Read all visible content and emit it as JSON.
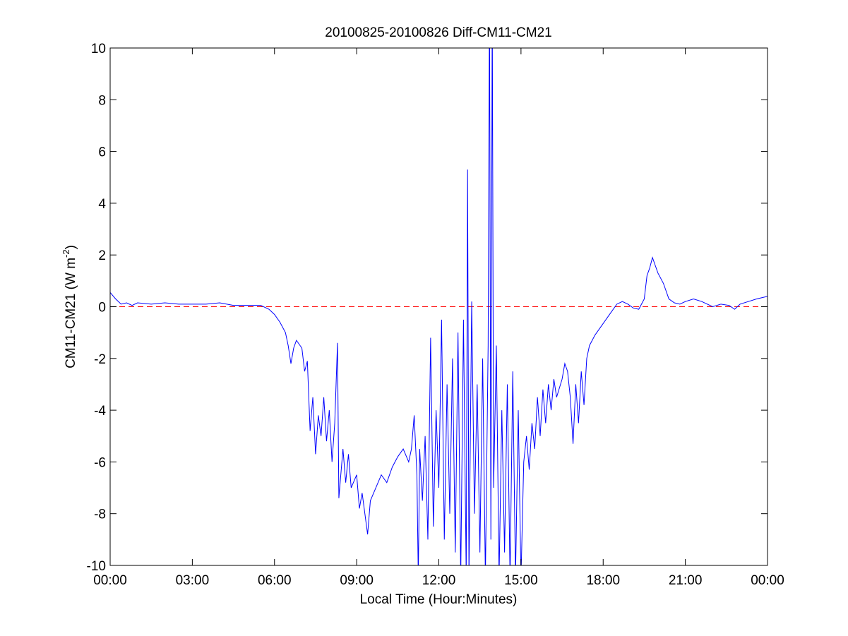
{
  "chart_data": {
    "type": "line",
    "title": "20100825-20100826 Diff-CM11-CM21",
    "xlabel": "Local Time (Hour:Minutes)",
    "ylabel": {
      "text": "CM11-CM21 (W m",
      "superscript": "-2",
      "suffix": ")"
    },
    "xlim": [
      0,
      24
    ],
    "xticks": [
      {
        "value": 0,
        "label": "00:00"
      },
      {
        "value": 3,
        "label": "03:00"
      },
      {
        "value": 6,
        "label": "06:00"
      },
      {
        "value": 9,
        "label": "09:00"
      },
      {
        "value": 12,
        "label": "12:00"
      },
      {
        "value": 15,
        "label": "15:00"
      },
      {
        "value": 18,
        "label": "18:00"
      },
      {
        "value": 21,
        "label": "21:00"
      },
      {
        "value": 24,
        "label": "00:00"
      }
    ],
    "ylim": [
      -10,
      10
    ],
    "yticks": [
      -10,
      -8,
      -6,
      -4,
      -2,
      0,
      2,
      4,
      6,
      8,
      10
    ],
    "reference_line": {
      "value": 0,
      "color": "#ff0000"
    },
    "series": [
      {
        "color": "#0000ff",
        "x": [
          0,
          0.2,
          0.4,
          0.6,
          0.8,
          1.0,
          1.5,
          2,
          2.5,
          3,
          3.5,
          4,
          4.5,
          5,
          5.5,
          5.8,
          6.0,
          6.2,
          6.4,
          6.5,
          6.6,
          6.7,
          6.8,
          7.0,
          7.1,
          7.2,
          7.3,
          7.4,
          7.5,
          7.6,
          7.7,
          7.8,
          7.9,
          8.0,
          8.1,
          8.2,
          8.3,
          8.35,
          8.5,
          8.6,
          8.7,
          8.8,
          9.0,
          9.1,
          9.2,
          9.3,
          9.4,
          9.5,
          9.7,
          9.9,
          10.1,
          10.3,
          10.5,
          10.7,
          10.9,
          11.0,
          11.1,
          11.2,
          11.25,
          11.3,
          11.4,
          11.5,
          11.6,
          11.7,
          11.8,
          11.9,
          12.0,
          12.1,
          12.2,
          12.3,
          12.4,
          12.5,
          12.6,
          12.7,
          12.8,
          12.9,
          13.0,
          13.05,
          13.1,
          13.2,
          13.3,
          13.4,
          13.5,
          13.6,
          13.7,
          13.8,
          13.85,
          13.9,
          13.95,
          14.0,
          14.1,
          14.2,
          14.3,
          14.4,
          14.5,
          14.6,
          14.7,
          14.8,
          14.9,
          15.0,
          15.1,
          15.2,
          15.3,
          15.4,
          15.5,
          15.6,
          15.7,
          15.8,
          15.9,
          16.0,
          16.1,
          16.2,
          16.3,
          16.5,
          16.6,
          16.7,
          16.8,
          16.9,
          17.0,
          17.1,
          17.2,
          17.3,
          17.4,
          17.5,
          17.7,
          17.9,
          18.1,
          18.3,
          18.5,
          18.7,
          18.9,
          19.1,
          19.3,
          19.5,
          19.6,
          19.7,
          19.8,
          19.9,
          20.0,
          20.2,
          20.4,
          20.6,
          20.8,
          21,
          21.3,
          21.6,
          22,
          22.3,
          22.6,
          22.8,
          23,
          23.3,
          23.6,
          24
        ],
        "values": [
          0.55,
          0.3,
          0.1,
          0.15,
          0.05,
          0.15,
          0.1,
          0.15,
          0.1,
          0.1,
          0.1,
          0.15,
          0.05,
          0.05,
          0.05,
          -0.1,
          -0.3,
          -0.6,
          -1.0,
          -1.5,
          -2.2,
          -1.6,
          -1.3,
          -1.6,
          -2.5,
          -2.1,
          -4.8,
          -3.5,
          -5.7,
          -4.2,
          -5.0,
          -3.5,
          -5.2,
          -4.0,
          -6.0,
          -4.5,
          -1.4,
          -7.4,
          -5.5,
          -6.8,
          -5.7,
          -7.0,
          -6.5,
          -7.8,
          -7.2,
          -8.0,
          -8.8,
          -7.5,
          -7.0,
          -6.5,
          -6.8,
          -6.2,
          -5.8,
          -5.5,
          -6.0,
          -5.5,
          -4.2,
          -6.5,
          -10.5,
          -5.5,
          -7.5,
          -5.0,
          -9.0,
          -1.2,
          -8.5,
          -4.0,
          -7.0,
          -0.5,
          -9.0,
          -3.0,
          -8.0,
          -2.0,
          -9.5,
          -1.0,
          -10.5,
          -0.5,
          -10.5,
          5.3,
          -10.5,
          0.2,
          -8.0,
          -3.0,
          -9.5,
          -2.0,
          -10.5,
          -1.5,
          12,
          -9.0,
          12,
          -7.0,
          -1.5,
          -10.5,
          -4.0,
          -9.5,
          -3.0,
          -10.5,
          -2.5,
          -10.5,
          -4.0,
          -10.5,
          -6.0,
          -5.0,
          -6.3,
          -4.5,
          -5.5,
          -3.5,
          -5.0,
          -3.2,
          -4.5,
          -3.0,
          -4.0,
          -2.8,
          -3.5,
          -2.8,
          -2.2,
          -2.5,
          -3.5,
          -5.3,
          -3.0,
          -4.5,
          -2.5,
          -3.8,
          -2.0,
          -1.5,
          -1.1,
          -0.8,
          -0.5,
          -0.2,
          0.1,
          0.2,
          0.1,
          -0.05,
          -0.1,
          0.3,
          1.2,
          1.5,
          1.9,
          1.6,
          1.3,
          0.9,
          0.3,
          0.15,
          0.1,
          0.2,
          0.3,
          0.2,
          0.0,
          0.1,
          0.05,
          -0.1,
          0.1,
          0.2,
          0.3,
          0.4
        ]
      }
    ]
  }
}
